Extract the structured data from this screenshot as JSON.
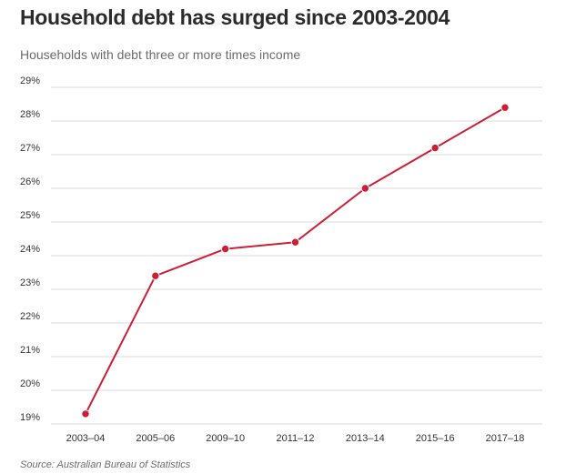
{
  "chart_data": {
    "type": "line",
    "title": "Household debt has surged since 2003-2004",
    "subtitle": "Households with debt three or more times income",
    "source": "Source: Australian Bureau of Statistics",
    "xlabel": "",
    "ylabel": "",
    "categories": [
      "2003–04",
      "2005–06",
      "2009–10",
      "2011–12",
      "2013–14",
      "2015–16",
      "2017–18"
    ],
    "values": [
      19.3,
      23.4,
      24.2,
      24.4,
      26.0,
      27.2,
      28.4
    ],
    "ylim": [
      19,
      29
    ],
    "yticks": [
      "19%",
      "20%",
      "21%",
      "22%",
      "23%",
      "24%",
      "25%",
      "26%",
      "27%",
      "28%",
      "29%"
    ],
    "grid": true,
    "line_color": "#cc1f36"
  }
}
